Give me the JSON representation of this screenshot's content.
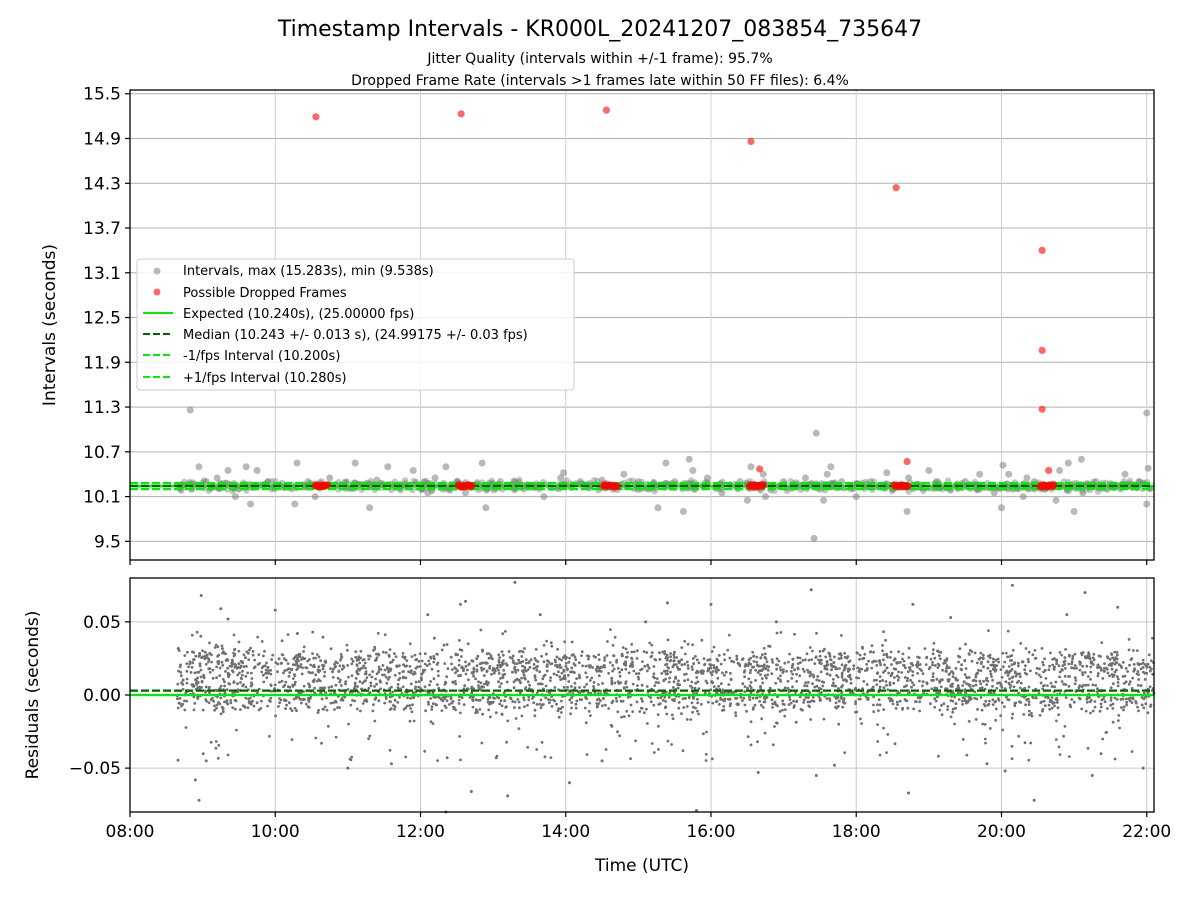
{
  "chart_data": [
    {
      "type": "scatter",
      "title": "Timestamp Intervals - KR000L_20241207_083854_735647",
      "subtitle_lines": [
        "Jitter Quality (intervals within +/-1 frame): 95.7%",
        "Dropped Frame Rate (intervals >1 frames late within 50 FF files): 6.4%"
      ],
      "xlabel": "",
      "ylabel": "Intervals (seconds)",
      "xlim_hours": [
        8.0,
        22.1
      ],
      "ylim": [
        9.25,
        15.55
      ],
      "y_ticks": [
        "9.5",
        "10.1",
        "10.7",
        "11.3",
        "11.9",
        "12.5",
        "13.1",
        "13.7",
        "14.3",
        "14.9",
        "15.5"
      ],
      "grid": true,
      "legend": {
        "placement": "center-left",
        "entries": [
          {
            "label": "Intervals, max (15.283s), min (9.538s)",
            "kind": "marker",
            "color": "#808080"
          },
          {
            "label": "Possible Dropped Frames",
            "kind": "marker",
            "color": "#ff0000"
          },
          {
            "label": "Expected (10.240s), (25.00000 fps)",
            "kind": "solid",
            "color": "#00ee00"
          },
          {
            "label": "Median (10.243 +/- 0.013 s), (24.99175 +/- 0.03 fps)",
            "kind": "dashed",
            "color": "#006400"
          },
          {
            "label": "-1/fps Interval (10.200s)",
            "kind": "dashed",
            "color": "#00ee00"
          },
          {
            "label": "+1/fps Interval (10.280s)",
            "kind": "dashed",
            "color": "#00ee00"
          }
        ]
      },
      "reference_lines": [
        {
          "name": "Expected",
          "y": 10.24,
          "style": "solid",
          "color": "#00ee00"
        },
        {
          "name": "Median",
          "y": 10.243,
          "style": "dashed",
          "color": "#006400"
        },
        {
          "name": "-1/fps",
          "y": 10.2,
          "style": "dashed",
          "color": "#00ee00"
        },
        {
          "name": "+1/fps",
          "y": 10.28,
          "style": "dashed",
          "color": "#00ee00"
        }
      ],
      "intervals": {
        "color": "#808080",
        "x_hours": [
          8.83,
          8.95,
          9.05,
          9.12,
          9.2,
          9.35,
          9.45,
          9.6,
          9.66,
          9.75,
          9.9,
          10.27,
          10.3,
          10.45,
          10.55,
          10.75,
          10.85,
          11.1,
          11.3,
          11.4,
          11.55,
          11.7,
          11.9,
          12.05,
          12.1,
          12.2,
          12.35,
          12.4,
          12.5,
          12.62,
          12.85,
          12.9,
          13.1,
          13.3,
          13.5,
          13.7,
          13.93,
          13.97,
          14.2,
          14.35,
          14.5,
          14.8,
          15.0,
          15.15,
          15.27,
          15.38,
          15.5,
          15.62,
          15.7,
          15.75,
          15.95,
          16.15,
          16.4,
          16.5,
          16.55,
          16.72,
          16.75,
          17.0,
          17.25,
          17.3,
          17.42,
          17.45,
          17.5,
          17.55,
          17.6,
          17.65,
          17.8,
          18.0,
          18.2,
          18.42,
          18.5,
          18.7,
          18.72,
          18.9,
          19.0,
          19.1,
          19.3,
          19.5,
          19.7,
          19.9,
          20.0,
          20.02,
          20.1,
          20.15,
          20.3,
          20.35,
          20.45,
          20.6,
          20.75,
          20.8,
          20.9,
          20.92,
          21.0,
          21.1,
          21.12,
          21.3,
          21.5,
          21.7,
          21.9,
          22.0,
          22.0,
          22.02
        ],
        "y": [
          11.26,
          10.5,
          10.3,
          10.22,
          10.35,
          10.45,
          10.1,
          10.5,
          10.0,
          10.45,
          10.3,
          10.0,
          10.55,
          10.3,
          10.1,
          10.35,
          10.25,
          10.55,
          9.95,
          10.32,
          10.5,
          10.25,
          10.45,
          10.3,
          10.15,
          10.35,
          10.5,
          10.2,
          10.3,
          10.15,
          10.55,
          9.95,
          10.3,
          10.3,
          10.25,
          10.1,
          10.35,
          10.42,
          10.3,
          10.25,
          10.32,
          10.4,
          10.3,
          10.2,
          9.95,
          10.55,
          10.3,
          9.9,
          10.6,
          10.45,
          10.35,
          10.15,
          10.3,
          10.05,
          10.5,
          10.4,
          10.1,
          10.3,
          10.25,
          10.35,
          9.54,
          10.95,
          10.2,
          10.05,
          10.4,
          10.5,
          10.3,
          10.1,
          10.3,
          10.42,
          10.2,
          9.9,
          10.35,
          10.25,
          10.45,
          10.3,
          10.2,
          10.3,
          10.4,
          10.15,
          9.95,
          10.52,
          10.4,
          10.2,
          10.1,
          10.35,
          10.3,
          10.2,
          10.05,
          10.45,
          10.2,
          10.55,
          9.9,
          10.6,
          10.15,
          10.3,
          10.25,
          10.4,
          10.3,
          11.22,
          10.0,
          10.48
        ]
      },
      "dropped_frames": {
        "color": "#ff0000",
        "x_hours": [
          10.56,
          12.56,
          14.56,
          16.55,
          18.55,
          18.7,
          20.56,
          20.56,
          20.56,
          20.65,
          16.67
        ],
        "y": [
          15.19,
          15.23,
          15.28,
          14.86,
          14.24,
          10.57,
          13.4,
          12.06,
          11.27,
          10.45,
          10.47
        ],
        "clusters": [
          {
            "x_start": 10.55,
            "x_end": 10.72
          },
          {
            "x_start": 12.52,
            "x_end": 12.72
          },
          {
            "x_start": 14.52,
            "x_end": 14.72
          },
          {
            "x_start": 16.53,
            "x_end": 16.73
          },
          {
            "x_start": 18.52,
            "x_end": 18.72
          },
          {
            "x_start": 20.53,
            "x_end": 20.73
          }
        ]
      }
    },
    {
      "type": "scatter",
      "xlabel": "Time (UTC)",
      "ylabel": "Residuals (seconds)",
      "xlim_hours": [
        8.0,
        22.1
      ],
      "ylim": [
        -0.08,
        0.08
      ],
      "y_ticks": [
        "−0.05",
        "0.00",
        "0.05"
      ],
      "y_tick_values": [
        -0.05,
        0.0,
        0.05
      ],
      "x_ticks": [
        "08:00",
        "10:00",
        "12:00",
        "14:00",
        "16:00",
        "18:00",
        "20:00",
        "22:00"
      ],
      "x_tick_values": [
        8,
        10,
        12,
        14,
        16,
        18,
        20,
        22
      ],
      "grid": true,
      "data_span_hours": [
        8.65,
        22.1
      ],
      "bands": [
        {
          "center": 0.02,
          "spread": 0.006
        },
        {
          "center": 0.0,
          "spread": 0.006
        }
      ],
      "outliers": {
        "x_hours": [
          8.95,
          8.98,
          9.25,
          10.0,
          12.35,
          12.55,
          12.62,
          12.7,
          13.2,
          13.3,
          14.05,
          15.4,
          15.8,
          16.0,
          16.65,
          17.38,
          17.45,
          18.72,
          18.78,
          20.15,
          20.05,
          20.45,
          21.15,
          21.25,
          8.9,
          9.05,
          9.35,
          11.0,
          11.6,
          12.1,
          13.65,
          14.5,
          15.1,
          16.9,
          17.7,
          19.3,
          19.8,
          20.9,
          21.6,
          21.95
        ],
        "y": [
          -0.072,
          0.068,
          0.059,
          0.058,
          -0.08,
          0.062,
          0.064,
          -0.066,
          -0.069,
          0.077,
          -0.06,
          0.063,
          -0.079,
          0.062,
          -0.053,
          0.072,
          -0.055,
          -0.067,
          0.062,
          0.075,
          -0.052,
          -0.072,
          0.07,
          -0.055,
          -0.058,
          -0.045,
          0.052,
          -0.05,
          -0.047,
          0.055,
          0.055,
          -0.045,
          0.05,
          0.05,
          -0.048,
          0.053,
          -0.047,
          0.055,
          0.06,
          -0.05
        ]
      },
      "reference_lines": [
        {
          "name": "Expected",
          "y": 0.0,
          "style": "solid",
          "color": "#00ee00"
        },
        {
          "name": "Median",
          "y": 0.003,
          "style": "dashed",
          "color": "#006400"
        }
      ]
    }
  ]
}
